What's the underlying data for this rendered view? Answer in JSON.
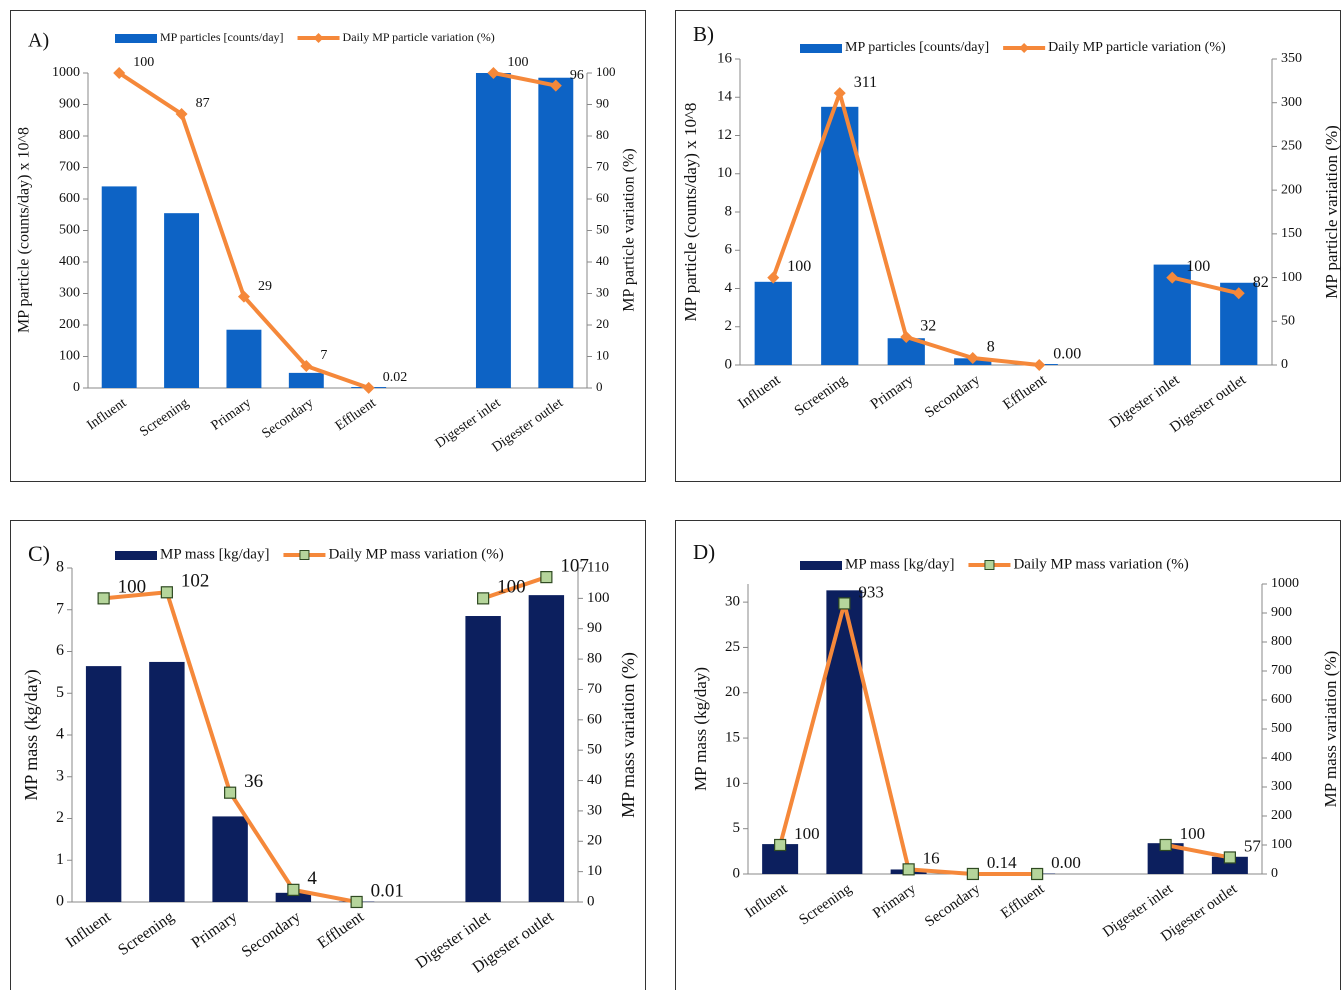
{
  "chart_data": [
    {
      "type": "combo",
      "title": "A)",
      "y_label": "MP particle (counts/day) x 10^8",
      "y2_label": "MP particle variation (%)",
      "categories": [
        "Influent",
        "Screening",
        "Primary",
        "Secondary",
        "Effluent",
        null,
        "Digester inlet",
        "Digester outlet"
      ],
      "series": [
        {
          "name": "MP particles [counts/day]",
          "type": "bar",
          "color": "#0d63c5",
          "values": [
            640,
            555,
            185,
            48,
            3,
            null,
            1000,
            985
          ]
        },
        {
          "name": "Daily MP particle variation (%)",
          "type": "line",
          "axis": "y2",
          "marker": "diamond",
          "color": "#f5883a",
          "marker_color": "#f5883a",
          "values": [
            100,
            87,
            29,
            7,
            0.02,
            null,
            100,
            96
          ]
        }
      ],
      "ylim": [
        0,
        1000
      ],
      "yticks": [
        0,
        100,
        200,
        300,
        400,
        500,
        600,
        700,
        800,
        900,
        1000
      ],
      "y2lim": [
        0,
        100
      ],
      "y2ticks": [
        0,
        10,
        20,
        30,
        40,
        50,
        60,
        70,
        80,
        90,
        100
      ]
    },
    {
      "type": "combo",
      "title": "B)",
      "y_label": "MP particle (counts/day) x 10^8",
      "y2_label": "MP particle variation (%)",
      "categories": [
        "Influent",
        "Screening",
        "Primary",
        "Secondary",
        "Effluent",
        null,
        "Digester inlet",
        "Digester outlet"
      ],
      "series": [
        {
          "name": "MP particles [counts/day]",
          "type": "bar",
          "color": "#0d63c5",
          "values": [
            4.35,
            13.5,
            1.4,
            0.35,
            0.05,
            null,
            5.25,
            4.3
          ]
        },
        {
          "name": "Daily MP particle variation (%)",
          "type": "line",
          "axis": "y2",
          "marker": "diamond",
          "color": "#f5883a",
          "marker_color": "#f5883a",
          "values": [
            100,
            311,
            32,
            8,
            0,
            null,
            100,
            82
          ],
          "value_labels": [
            "100",
            "311",
            "32",
            "8",
            "0.00",
            null,
            "100",
            "82"
          ]
        }
      ],
      "ylim": [
        0,
        16
      ],
      "yticks": [
        0,
        2,
        4,
        6,
        8,
        10,
        12,
        14,
        16
      ],
      "y2lim": [
        0,
        350
      ],
      "y2ticks": [
        0,
        50,
        100,
        150,
        200,
        250,
        300,
        350
      ]
    },
    {
      "type": "combo",
      "title": "C)",
      "y_label": "MP mass (kg/day)",
      "y2_label": "MP mass variation (%)",
      "categories": [
        "Influent",
        "Screening",
        "Primary",
        "Secondary",
        "Effluent",
        null,
        "Digester inlet",
        "Digester outlet"
      ],
      "series": [
        {
          "name": "MP mass [kg/day]",
          "type": "bar",
          "color": "#0c1f5e",
          "values": [
            5.65,
            5.75,
            2.05,
            0.22,
            0.01,
            null,
            6.85,
            7.35
          ]
        },
        {
          "name": "Daily MP mass variation (%)",
          "type": "line",
          "axis": "y2",
          "marker": "square",
          "color": "#f5883a",
          "marker_color": "#b5d59b",
          "values": [
            100,
            102,
            36,
            4,
            0.01,
            null,
            100,
            107
          ]
        }
      ],
      "ylim": [
        0,
        8
      ],
      "yticks": [
        0,
        1,
        2,
        3,
        4,
        5,
        6,
        7,
        8
      ],
      "y2lim": [
        0,
        110
      ],
      "y2ticks": [
        0,
        10,
        20,
        30,
        40,
        50,
        60,
        70,
        80,
        90,
        100,
        110
      ]
    },
    {
      "type": "combo",
      "title": "D)",
      "y_label": "MP mass (kg/day)",
      "y2_label": "MP mass variation (%)",
      "categories": [
        "Influent",
        "Screening",
        "Primary",
        "Secondary",
        "Effluent",
        null,
        "Digester inlet",
        "Digester outlet"
      ],
      "series": [
        {
          "name": "MP mass [kg/day]",
          "type": "bar",
          "color": "#0c1f5e",
          "values": [
            3.3,
            31.3,
            0.5,
            0.1,
            0.05,
            null,
            3.4,
            1.9
          ]
        },
        {
          "name": "Daily MP mass variation (%)",
          "type": "line",
          "axis": "y2",
          "marker": "square",
          "color": "#f5883a",
          "marker_color": "#b5d59b",
          "values": [
            100,
            933,
            16,
            0.14,
            0,
            null,
            100,
            57
          ],
          "value_labels": [
            "100",
            "933",
            "16",
            "0.14",
            "0.00",
            null,
            "100",
            "57"
          ]
        }
      ],
      "ylim": [
        0,
        32
      ],
      "yticks": [
        0,
        5,
        10,
        15,
        20,
        25,
        30
      ],
      "y2lim": [
        0,
        1000
      ],
      "y2ticks": [
        0,
        100,
        200,
        300,
        400,
        500,
        600,
        700,
        800,
        900,
        1000
      ]
    }
  ]
}
